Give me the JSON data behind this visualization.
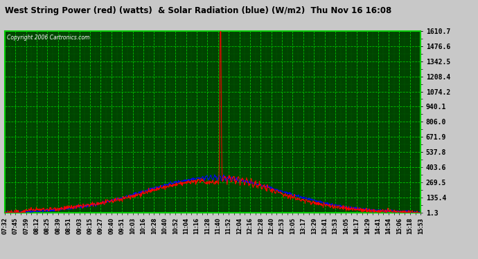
{
  "title": "West String Power (red) (watts)  & Solar Radiation (blue) (W/m2)  Thu Nov 16 16:08",
  "copyright": "Copyright 2006 Cartronics.com",
  "background_color": "#c8c8c8",
  "plot_bg_color": "#004400",
  "title_bg_color": "#c8c8c8",
  "grid_color_major": "#00cc00",
  "grid_color_minor": "#006600",
  "text_color": "#000000",
  "ytick_color": "#000000",
  "y_ticks": [
    1.3,
    135.4,
    269.5,
    403.6,
    537.8,
    671.9,
    806.0,
    940.1,
    1074.2,
    1208.4,
    1342.5,
    1476.6,
    1610.7
  ],
  "x_labels": [
    "07:32",
    "07:45",
    "07:59",
    "08:12",
    "08:25",
    "08:39",
    "08:51",
    "09:03",
    "09:15",
    "09:27",
    "09:40",
    "09:51",
    "10:03",
    "10:16",
    "10:28",
    "10:40",
    "10:52",
    "11:04",
    "11:16",
    "11:28",
    "11:40",
    "11:52",
    "12:04",
    "12:16",
    "12:28",
    "12:40",
    "12:53",
    "13:05",
    "13:17",
    "13:29",
    "13:41",
    "13:53",
    "14:05",
    "14:17",
    "14:29",
    "14:41",
    "14:54",
    "15:06",
    "15:18",
    "15:53"
  ],
  "ymin": 1.3,
  "ymax": 1610.7,
  "red_line_color": "#ff0000",
  "blue_line_color": "#0000ff",
  "figsize": [
    6.9,
    3.75
  ],
  "dpi": 100
}
